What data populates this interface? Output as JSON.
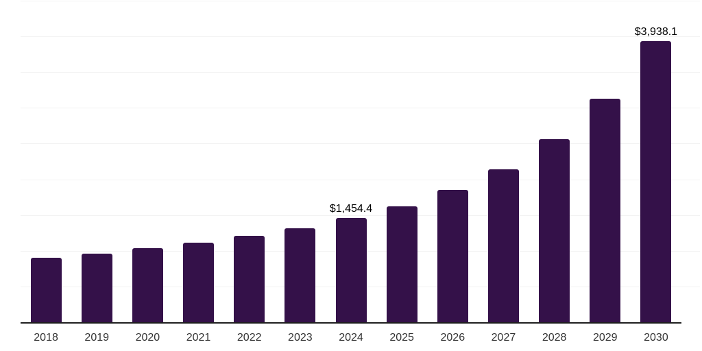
{
  "chart_data": {
    "type": "bar",
    "title": "",
    "xlabel": "",
    "ylabel": "",
    "categories": [
      "2018",
      "2019",
      "2020",
      "2021",
      "2022",
      "2023",
      "2024",
      "2025",
      "2026",
      "2027",
      "2028",
      "2029",
      "2030"
    ],
    "values": [
      900,
      955,
      1035,
      1115,
      1210,
      1315,
      1454.4,
      1620,
      1850,
      2140,
      2560,
      3130,
      3938.1
    ],
    "data_labels": {
      "2024": "$1,454.4",
      "2030": "$3,938.1"
    },
    "ylim": [
      0,
      4500
    ],
    "grid": true,
    "grid_interval": 500,
    "legend": "none",
    "colors": {
      "bar": "#341149",
      "axis_line": "#1f1f1f",
      "gridline": "#f2f2f2",
      "data_label": "#000000",
      "tick_label": "#333333",
      "background": "#ffffff"
    }
  }
}
